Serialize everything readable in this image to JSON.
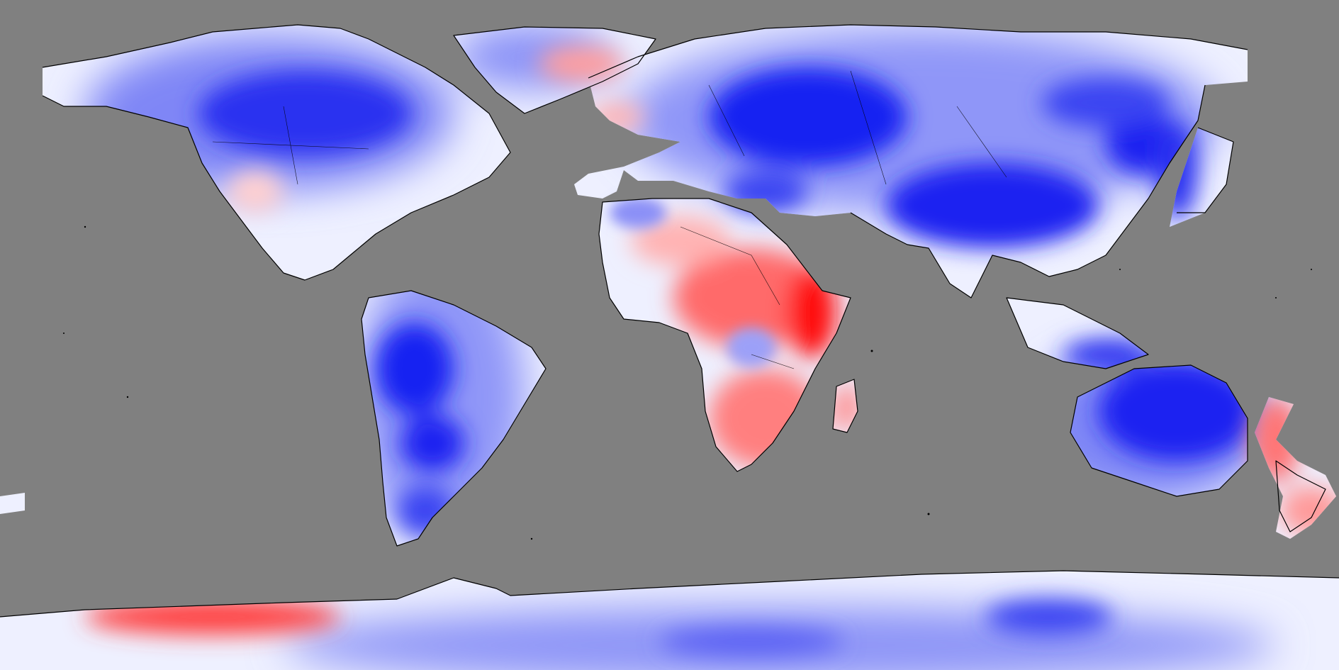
{
  "map": {
    "projection": "equirectangular",
    "background_color": "#808080",
    "colormap": {
      "negative": "#0000ff",
      "neutral": "#ffffff",
      "positive": "#ff0000"
    }
  }
}
